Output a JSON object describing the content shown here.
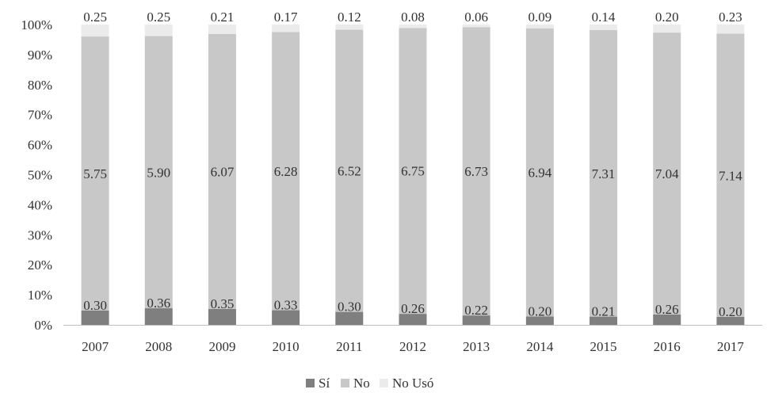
{
  "chart_data": {
    "type": "bar",
    "stacked": "percent",
    "title": "",
    "xlabel": "",
    "ylabel": "",
    "categories": [
      "2007",
      "2008",
      "2009",
      "2010",
      "2011",
      "2012",
      "2013",
      "2014",
      "2015",
      "2016",
      "2017"
    ],
    "series": [
      {
        "name": "Sí",
        "color": "#7f7f7f",
        "values": [
          0.3,
          0.36,
          0.35,
          0.33,
          0.3,
          0.26,
          0.22,
          0.2,
          0.21,
          0.26,
          0.2
        ],
        "labels": [
          "0.30",
          "0.36",
          "0.35",
          "0.33",
          "0.30",
          "0.26",
          "0.22",
          "0.20",
          "0.21",
          "0.26",
          "0.20"
        ]
      },
      {
        "name": "No",
        "color": "#c8c8c8",
        "values": [
          5.75,
          5.9,
          6.07,
          6.28,
          6.52,
          6.75,
          6.73,
          6.94,
          7.31,
          7.04,
          7.14
        ],
        "labels": [
          "5.75",
          "5.90",
          "6.07",
          "6.28",
          "6.52",
          "6.75",
          "6.73",
          "6.94",
          "7.31",
          "7.04",
          "7.14"
        ]
      },
      {
        "name": "No Usó",
        "color": "#ebebeb",
        "values": [
          0.25,
          0.25,
          0.21,
          0.17,
          0.12,
          0.08,
          0.06,
          0.09,
          0.14,
          0.2,
          0.23
        ],
        "labels": [
          "0.25",
          "0.25",
          "0.21",
          "0.17",
          "0.12",
          "0.08",
          "0.06",
          "0.09",
          "0.14",
          "0.20",
          "0.23"
        ]
      }
    ],
    "y_ticks": [
      "0%",
      "10%",
      "20%",
      "30%",
      "40%",
      "50%",
      "60%",
      "70%",
      "80%",
      "90%",
      "100%"
    ],
    "ylim": [
      0,
      100
    ],
    "grid": false,
    "legend_position": "bottom"
  }
}
